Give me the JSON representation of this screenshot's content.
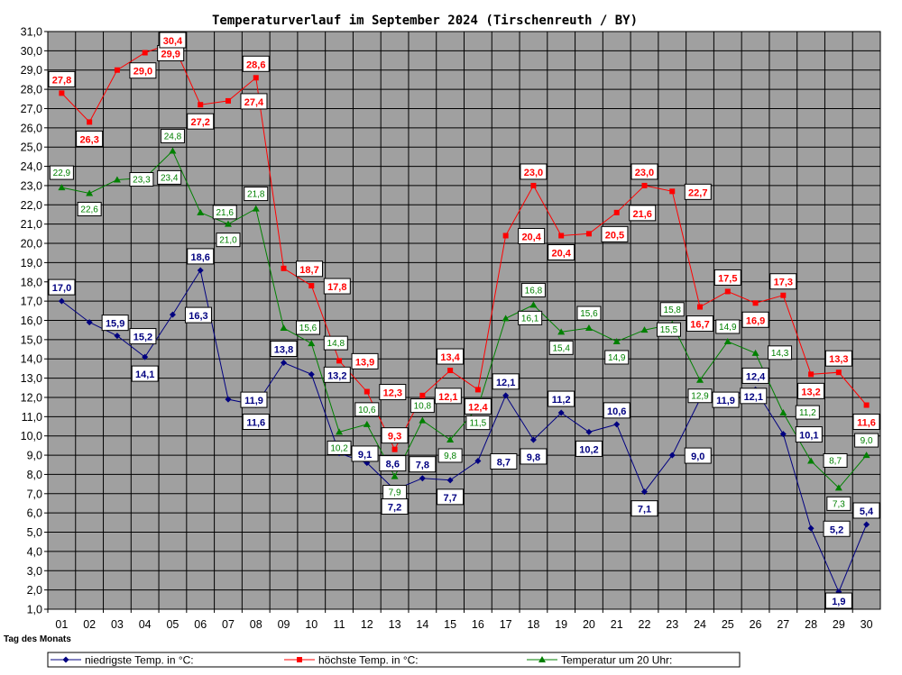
{
  "chart_data": {
    "type": "line",
    "title": "Temperaturverlauf im September 2024 (Tirschenreuth / BY)",
    "xlabel": "Tag des Monats",
    "ylabel": "",
    "x": [
      "01",
      "02",
      "03",
      "04",
      "05",
      "06",
      "07",
      "08",
      "09",
      "10",
      "11",
      "12",
      "13",
      "14",
      "15",
      "16",
      "17",
      "18",
      "19",
      "20",
      "21",
      "22",
      "23",
      "24",
      "25",
      "26",
      "27",
      "28",
      "29",
      "30"
    ],
    "ylim": [
      1.0,
      31.0
    ],
    "ytick_step": 1.0,
    "yticks": [
      "1,0",
      "2,0",
      "3,0",
      "4,0",
      "5,0",
      "6,0",
      "7,0",
      "8,0",
      "9,0",
      "10,0",
      "11,0",
      "12,0",
      "13,0",
      "14,0",
      "15,0",
      "16,0",
      "17,0",
      "18,0",
      "19,0",
      "20,0",
      "21,0",
      "22,0",
      "23,0",
      "24,0",
      "25,0",
      "26,0",
      "27,0",
      "28,0",
      "29,0",
      "30,0",
      "31,0"
    ],
    "grid": true,
    "legend_position": "bottom",
    "background_color": "#a0a0a0",
    "series": [
      {
        "name": "niedrigste Temp. in °C:",
        "color": "#000080",
        "marker": "diamond",
        "values": [
          17.0,
          15.9,
          15.2,
          14.1,
          16.3,
          18.6,
          11.9,
          11.6,
          13.8,
          13.2,
          9.1,
          8.6,
          7.2,
          7.8,
          7.7,
          8.7,
          12.1,
          9.8,
          11.2,
          10.2,
          10.6,
          7.1,
          9.0,
          11.9,
          12.1,
          12.4,
          10.1,
          5.2,
          1.9,
          5.4
        ],
        "labels": [
          "17,0",
          "15,9",
          "15,2",
          "14,1",
          "16,3",
          "18,6",
          "11,9",
          "11,6",
          "13,8",
          "13,2",
          "9,1",
          "8,6",
          "7,2",
          "7,8",
          "7,7",
          "8,7",
          "12,1",
          "9,8",
          "11,2",
          "10,2",
          "10,6",
          "7,1",
          "9,0",
          "11,9",
          "12,1",
          "12,4",
          "10,1",
          "5,2",
          "1,9",
          "5,4"
        ]
      },
      {
        "name": "höchste Temp. in °C:",
        "color": "#ff0000",
        "marker": "square",
        "values": [
          27.8,
          26.3,
          29.0,
          29.9,
          30.4,
          27.2,
          27.4,
          28.6,
          18.7,
          17.8,
          13.9,
          12.3,
          9.3,
          12.1,
          13.4,
          12.4,
          20.4,
          23.0,
          20.4,
          20.5,
          21.6,
          23.0,
          22.7,
          16.7,
          17.5,
          16.9,
          17.3,
          13.2,
          13.3,
          11.6
        ],
        "labels": [
          "27,8",
          "26,3",
          "29,0",
          "29,9",
          "30,4",
          "27,2",
          "27,4",
          "28,6",
          "18,7",
          "17,8",
          "13,9",
          "12,3",
          "9,3",
          "12,1",
          "13,4",
          "12,4",
          "20,4",
          "23,0",
          "20,4",
          "20,5",
          "21,6",
          "23,0",
          "22,7",
          "16,7",
          "17,5",
          "16,9",
          "17,3",
          "13,2",
          "13,3",
          "11,6"
        ]
      },
      {
        "name": "Temperatur um 20 Uhr:",
        "color": "#008000",
        "marker": "triangle",
        "values": [
          22.9,
          22.6,
          23.3,
          23.4,
          24.8,
          21.6,
          21.0,
          21.8,
          15.6,
          14.8,
          10.2,
          10.6,
          7.9,
          10.8,
          9.8,
          11.5,
          16.1,
          16.8,
          15.4,
          15.6,
          14.9,
          15.5,
          15.8,
          12.9,
          14.9,
          14.3,
          11.2,
          8.7,
          7.3,
          9.0
        ],
        "labels": [
          "22,9",
          "22,6",
          "23,3",
          "23,4",
          "24,8",
          "21,6",
          "21,0",
          "21,8",
          "15,6",
          "14,8",
          "10,2",
          "10,6",
          "7,9",
          "10,8",
          "9,8",
          "11,5",
          "16,1",
          "16,8",
          "15,4",
          "15,6",
          "14,9",
          "15,5",
          "15,8",
          "12,9",
          "14,9",
          "14,3",
          "11,2",
          "8,7",
          "7,3",
          "9,0"
        ]
      }
    ]
  }
}
